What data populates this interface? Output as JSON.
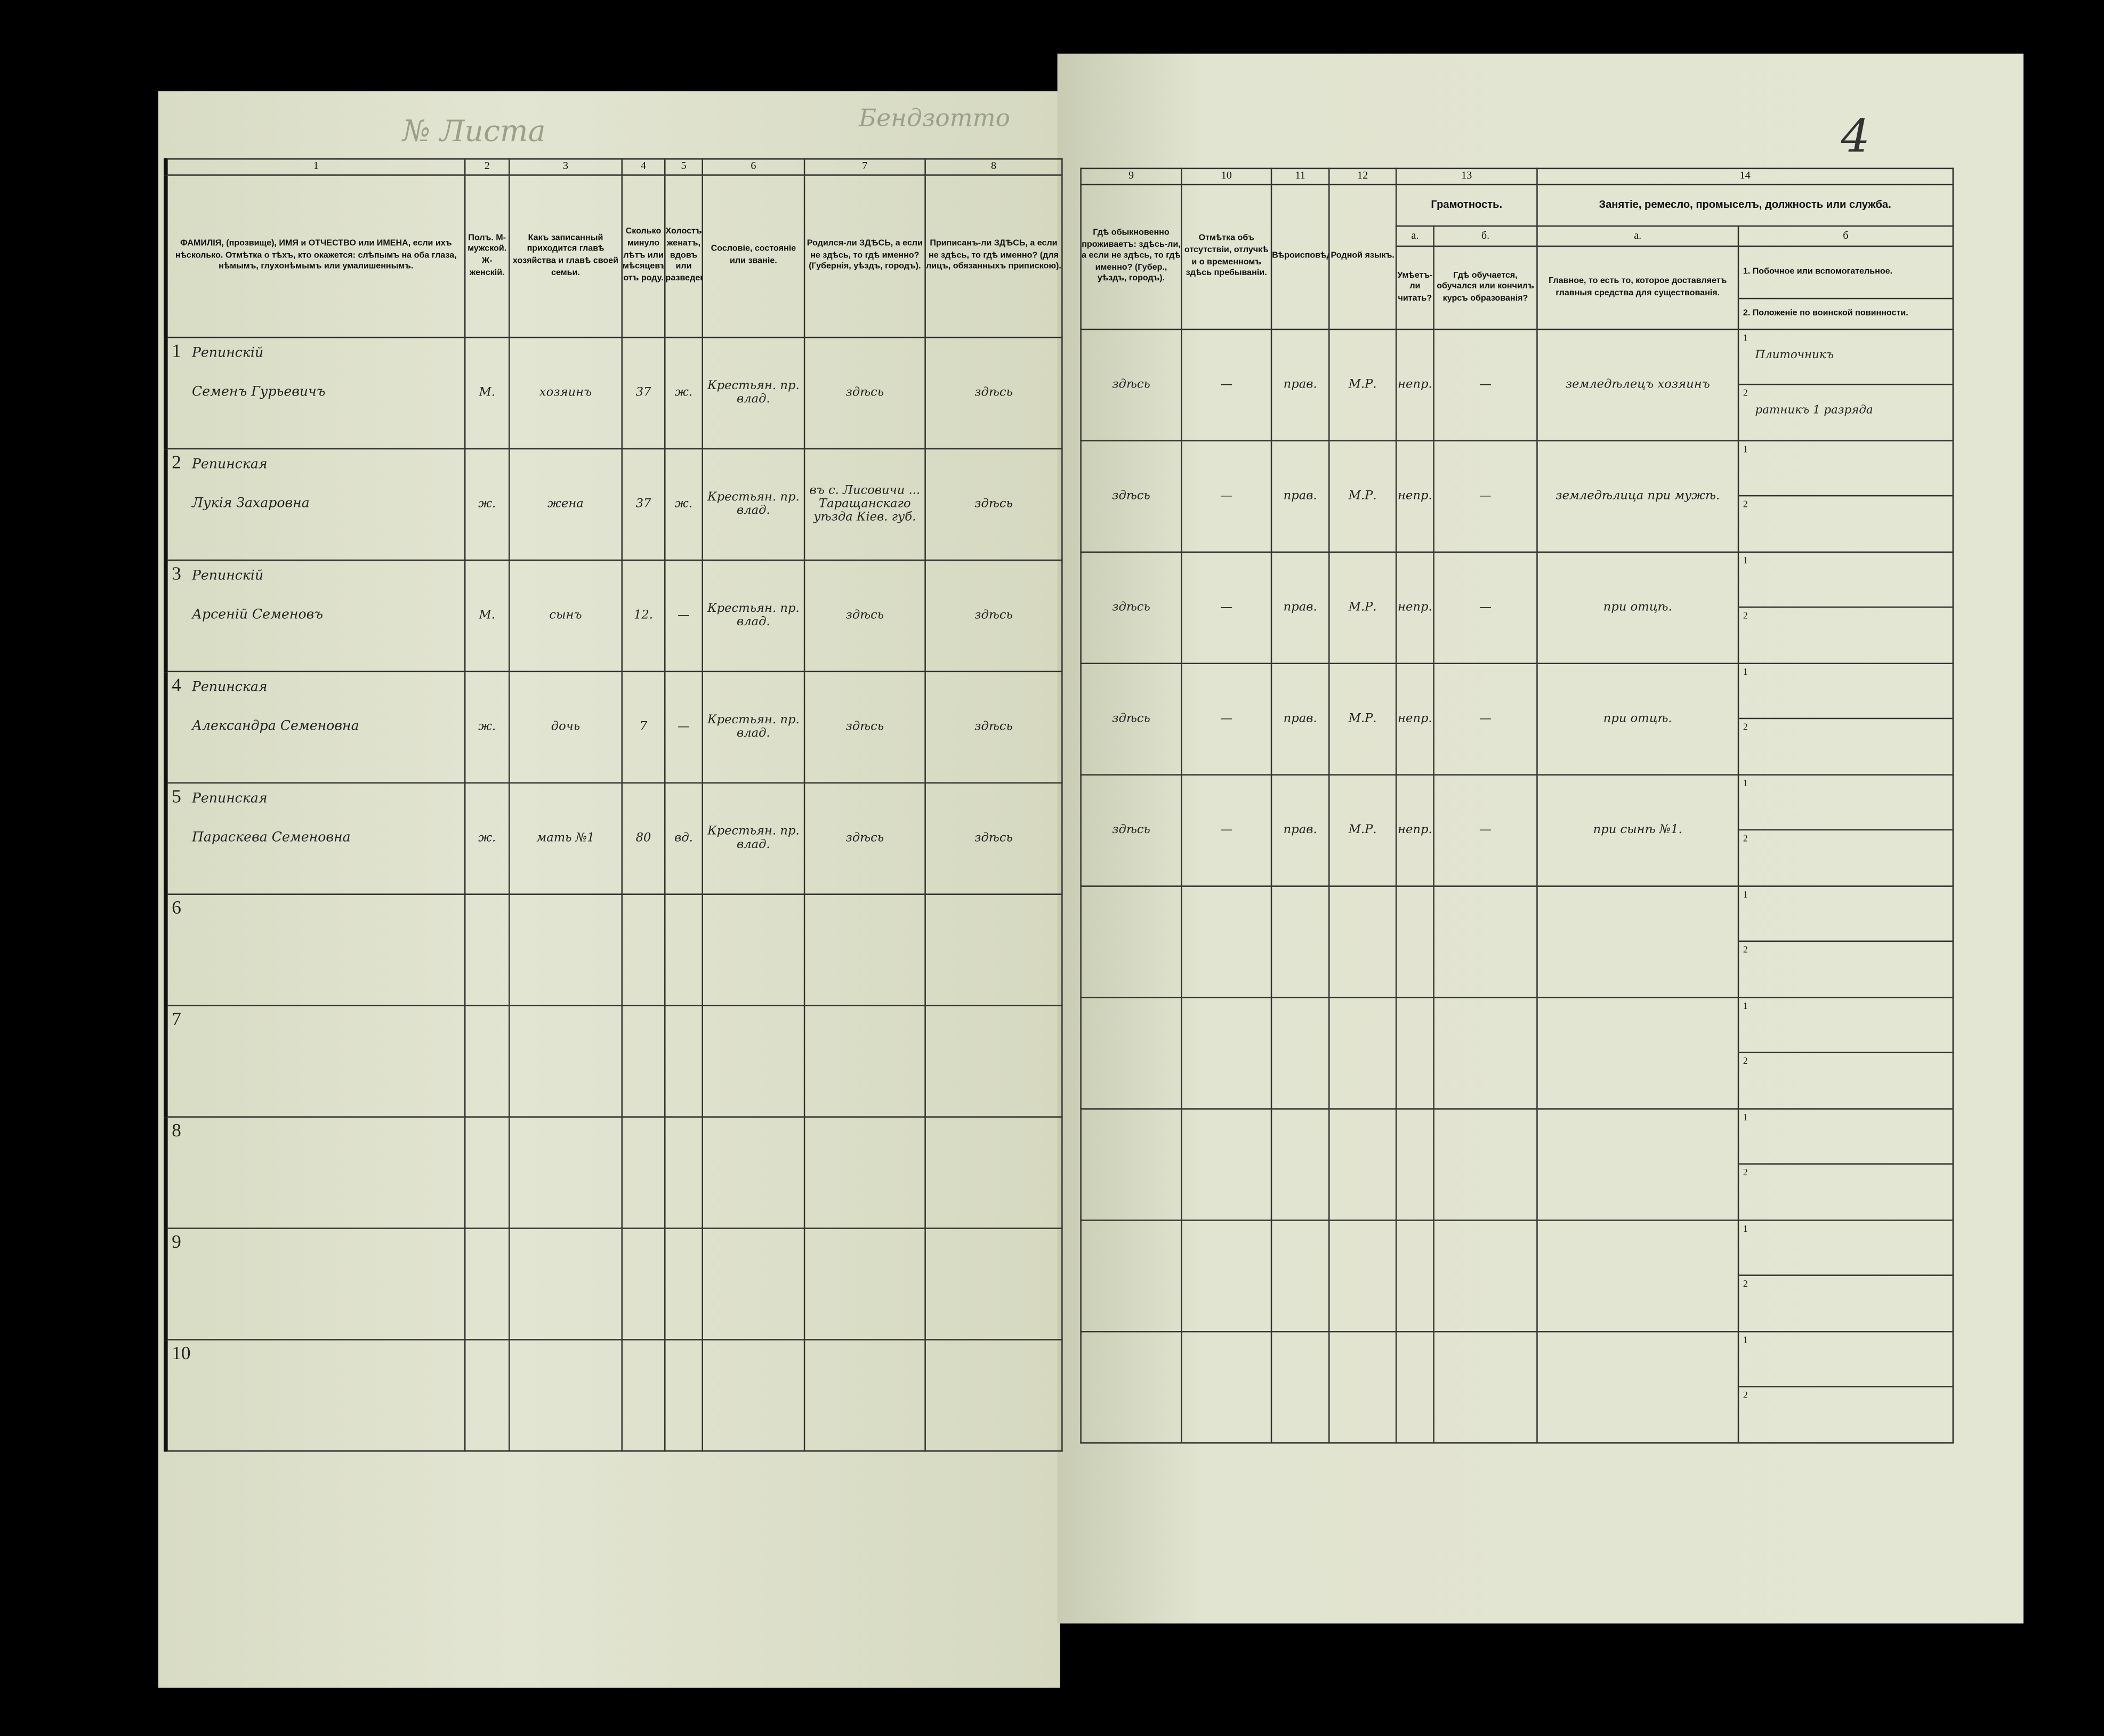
{
  "header_marks": {
    "left_top": "Бендзотто",
    "list_label": "№ Листа",
    "page_number": "4"
  },
  "left_columns": [
    {
      "num": "1",
      "label": "ФАМИЛІЯ, (прозвище), ИМЯ и ОТЧЕСТВО или ИМЕНА, если ихъ нѣсколько. Отмѣтка о тѣхъ, кто окажется: слѣпымъ на оба глаза, нѣмымъ, глухонѣмымъ или умалишеннымъ."
    },
    {
      "num": "2",
      "label": "Полъ. М-мужской. Ж-женскій."
    },
    {
      "num": "3",
      "label": "Какъ записанный приходится главѣ хозяйства и главѣ своей семьи."
    },
    {
      "num": "4",
      "label": "Сколько минуло лѣтъ или мѣсяцевъ отъ роду."
    },
    {
      "num": "5",
      "label": "Холостъ, женатъ, вдовъ или разведенъ."
    },
    {
      "num": "6",
      "label": "Сословіе, состояніе или званіе."
    },
    {
      "num": "7",
      "label": "Родился-ли ЗДѢСЬ, а если не здѣсь, то гдѣ именно? (Губернія, уѣздъ, городъ)."
    },
    {
      "num": "8",
      "label": "Приписанъ-ли ЗДѢСЬ, а если не здѣсь, то гдѣ именно? (для лицъ, обязанныхъ припискою)."
    }
  ],
  "right_columns": [
    {
      "num": "9",
      "label": "Гдѣ обыкновенно проживаетъ: здѣсь-ли, а если не здѣсь, то гдѣ именно? (Губер., уѣздъ, городъ)."
    },
    {
      "num": "10",
      "label": "Отмѣтка объ отсутствіи, отлучкѣ и о временномъ здѣсь пребываніи."
    },
    {
      "num": "11",
      "label": "Вѣроисповѣданіе."
    },
    {
      "num": "12",
      "label": "Родной языкъ."
    }
  ],
  "literacy": {
    "num": "13",
    "label": "Грамотность.",
    "a_letter": "а.",
    "a_label": "Умѣетъ-ли читать?",
    "b_letter": "б.",
    "b_label": "Гдѣ обучается, обучался или кончилъ курсъ образованія?"
  },
  "occupation": {
    "num": "14",
    "label": "Занятіе, ремесло, промыселъ, должность или служба.",
    "a_letter": "а.",
    "a_label": "Главное, то есть то, которое доставляетъ главныя средства для существованія.",
    "b_letter": "б",
    "b1_label": "1. Побочное или вспомогательное.",
    "b2_label": "2. Положеніе по воинской повинности."
  },
  "rows": [
    {
      "n": "1",
      "surname": "Репинскій",
      "given": "Семенъ Гурьевичъ",
      "sex": "М.",
      "relation": "хозяинъ",
      "age": "37",
      "marital": "ж.",
      "estate": "Крестьян. пр. влад.",
      "born": "здѣсь",
      "registered": "здѣсь",
      "lives": "здѣсь",
      "absence": "—",
      "religion": "прав.",
      "language": "М.Р.",
      "reads": "непр.",
      "school": "—",
      "main_occ": "земледѣлецъ хозяинъ",
      "side_occ": "Плиточникъ",
      "military": "ратникъ 1 разряда"
    },
    {
      "n": "2",
      "surname": "Репинская",
      "given": "Лукія Захаровна",
      "sex": "ж.",
      "relation": "жена",
      "age": "37",
      "marital": "ж.",
      "estate": "Крестьян. пр. влад.",
      "born": "въ с. Лисовичи ... Таращанскаго уѣзда Кiев. губ.",
      "registered": "здѣсь",
      "lives": "здѣсь",
      "absence": "—",
      "religion": "прав.",
      "language": "М.Р.",
      "reads": "непр.",
      "school": "—",
      "main_occ": "земледѣлица при мужѣ.",
      "side_occ": "",
      "military": ""
    },
    {
      "n": "3",
      "surname": "Репинскій",
      "given": "Арсеній Семеновъ",
      "sex": "М.",
      "relation": "сынъ",
      "age": "12.",
      "marital": "—",
      "estate": "Крестьян. пр. влад.",
      "born": "здѣсь",
      "registered": "здѣсь",
      "lives": "здѣсь",
      "absence": "—",
      "religion": "прав.",
      "language": "М.Р.",
      "reads": "непр.",
      "school": "—",
      "main_occ": "при отцѣ.",
      "side_occ": "",
      "military": ""
    },
    {
      "n": "4",
      "surname": "Репинская",
      "given": "Александра Семеновна",
      "sex": "ж.",
      "relation": "дочь",
      "age": "7",
      "marital": "—",
      "estate": "Крестьян. пр. влад.",
      "born": "здѣсь",
      "registered": "здѣсь",
      "lives": "здѣсь",
      "absence": "—",
      "religion": "прав.",
      "language": "М.Р.",
      "reads": "непр.",
      "school": "—",
      "main_occ": "при отцѣ.",
      "side_occ": "",
      "military": ""
    },
    {
      "n": "5",
      "surname": "Репинская",
      "given": "Параскева Семеновна",
      "sex": "ж.",
      "relation": "мать №1",
      "age": "80",
      "marital": "вд.",
      "estate": "Крестьян. пр. влад.",
      "born": "здѣсь",
      "registered": "здѣсь",
      "lives": "здѣсь",
      "absence": "—",
      "religion": "прав.",
      "language": "М.Р.",
      "reads": "непр.",
      "school": "—",
      "main_occ": "при сынѣ №1.",
      "side_occ": "",
      "military": ""
    },
    {
      "n": "6"
    },
    {
      "n": "7"
    },
    {
      "n": "8"
    },
    {
      "n": "9"
    },
    {
      "n": "10"
    }
  ],
  "sub_keys": [
    "1",
    "2"
  ]
}
